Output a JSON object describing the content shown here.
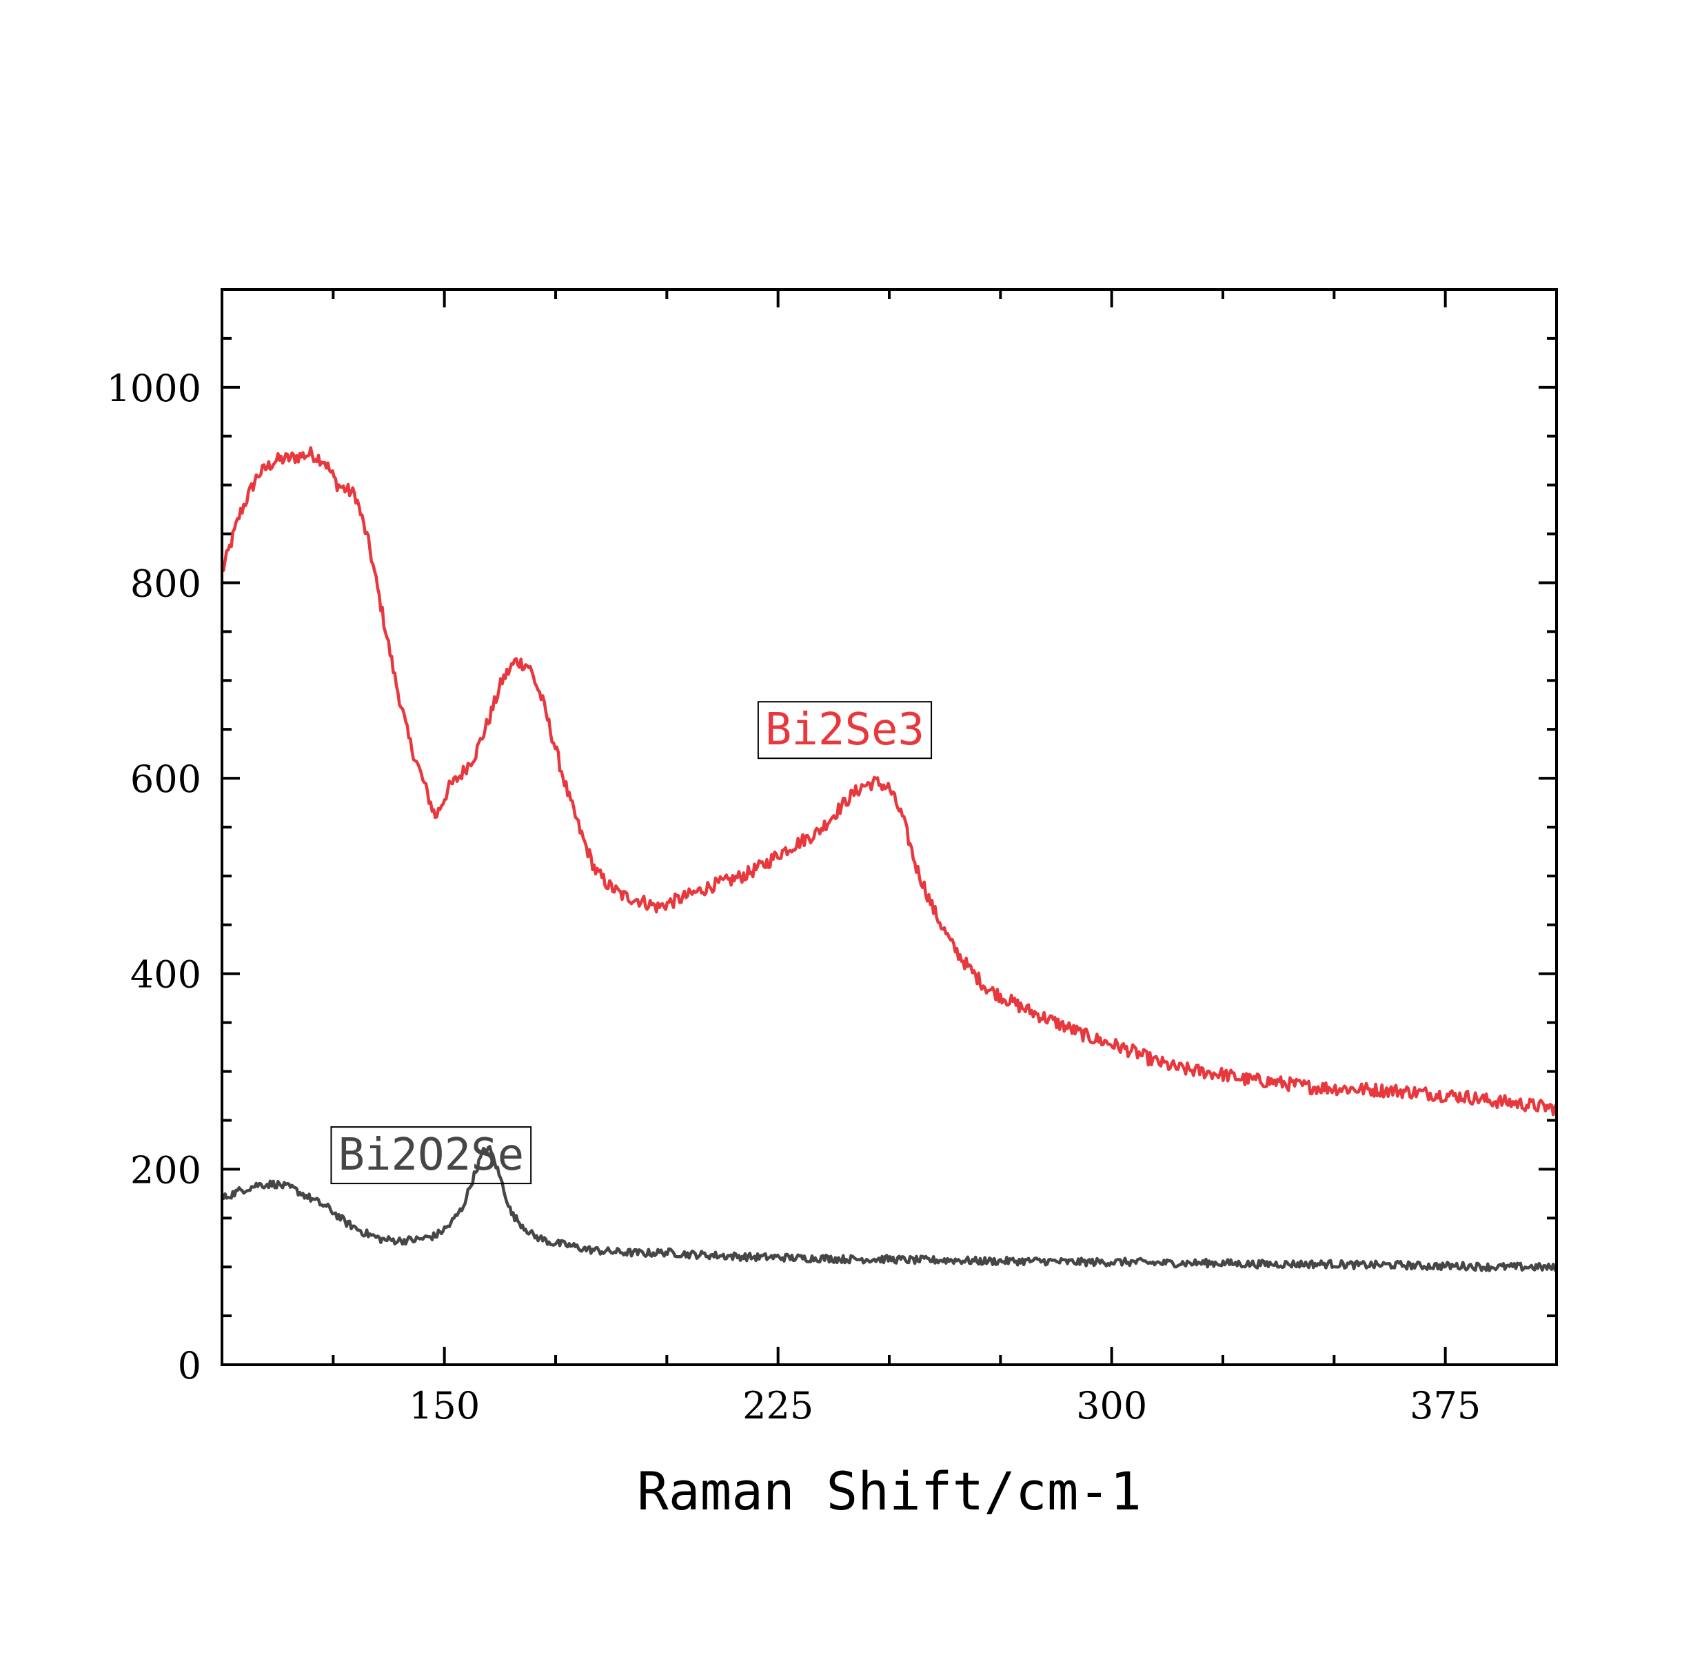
{
  "chart_data": {
    "type": "line",
    "xlabel": "Raman Shift/cm-1",
    "ylabel": "",
    "xlim": [
      100,
      400
    ],
    "ylim": [
      0,
      1100
    ],
    "x_ticks": [
      150,
      225,
      300,
      375
    ],
    "y_ticks": [
      0,
      200,
      400,
      600,
      800,
      1000
    ],
    "x_tick_labels": [
      "150",
      "225",
      "300",
      "375"
    ],
    "y_tick_labels": [
      "0",
      "200",
      "400",
      "600",
      "800",
      "1000"
    ],
    "grid": false,
    "legend": "none",
    "series": [
      {
        "name": "Bi2Se3",
        "color": "#e8383d",
        "label_position": [
          240,
          650
        ],
        "points": [
          [
            100,
            810
          ],
          [
            104,
            870
          ],
          [
            108,
            910
          ],
          [
            112,
            925
          ],
          [
            116,
            928
          ],
          [
            120,
            932
          ],
          [
            123,
            925
          ],
          [
            126,
            900
          ],
          [
            130,
            890
          ],
          [
            133,
            840
          ],
          [
            136,
            770
          ],
          [
            139,
            700
          ],
          [
            142,
            640
          ],
          [
            145,
            600
          ],
          [
            148,
            560
          ],
          [
            151,
            590
          ],
          [
            154,
            605
          ],
          [
            157,
            625
          ],
          [
            160,
            660
          ],
          [
            163,
            700
          ],
          [
            166,
            720
          ],
          [
            169,
            715
          ],
          [
            172,
            680
          ],
          [
            175,
            630
          ],
          [
            178,
            580
          ],
          [
            181,
            540
          ],
          [
            184,
            505
          ],
          [
            187,
            490
          ],
          [
            190,
            480
          ],
          [
            194,
            475
          ],
          [
            198,
            468
          ],
          [
            202,
            475
          ],
          [
            206,
            482
          ],
          [
            210,
            490
          ],
          [
            214,
            495
          ],
          [
            218,
            502
          ],
          [
            222,
            512
          ],
          [
            226,
            525
          ],
          [
            230,
            535
          ],
          [
            234,
            545
          ],
          [
            238,
            565
          ],
          [
            241,
            580
          ],
          [
            244,
            592
          ],
          [
            247,
            596
          ],
          [
            250,
            590
          ],
          [
            253,
            560
          ],
          [
            256,
            510
          ],
          [
            260,
            465
          ],
          [
            264,
            430
          ],
          [
            268,
            405
          ],
          [
            272,
            385
          ],
          [
            276,
            375
          ],
          [
            280,
            365
          ],
          [
            285,
            355
          ],
          [
            290,
            345
          ],
          [
            295,
            335
          ],
          [
            300,
            328
          ],
          [
            305,
            320
          ],
          [
            310,
            310
          ],
          [
            315,
            303
          ],
          [
            320,
            300
          ],
          [
            325,
            297
          ],
          [
            330,
            292
          ],
          [
            335,
            290
          ],
          [
            340,
            287
          ],
          [
            345,
            284
          ],
          [
            350,
            283
          ],
          [
            355,
            282
          ],
          [
            360,
            281
          ],
          [
            365,
            280
          ],
          [
            370,
            278
          ],
          [
            375,
            276
          ],
          [
            380,
            274
          ],
          [
            385,
            270
          ],
          [
            390,
            268
          ],
          [
            395,
            265
          ],
          [
            400,
            262
          ]
        ]
      },
      {
        "name": "Bi2O2Se",
        "color": "#464646",
        "label_position": [
          147,
          215
        ],
        "points": [
          [
            100,
            170
          ],
          [
            104,
            178
          ],
          [
            108,
            184
          ],
          [
            112,
            185
          ],
          [
            116,
            180
          ],
          [
            120,
            170
          ],
          [
            124,
            160
          ],
          [
            128,
            145
          ],
          [
            132,
            135
          ],
          [
            136,
            128
          ],
          [
            140,
            127
          ],
          [
            144,
            128
          ],
          [
            148,
            132
          ],
          [
            151,
            142
          ],
          [
            154,
            160
          ],
          [
            156,
            185
          ],
          [
            158,
            210
          ],
          [
            159,
            220
          ],
          [
            160,
            222
          ],
          [
            161,
            212
          ],
          [
            163,
            185
          ],
          [
            165,
            155
          ],
          [
            167,
            145
          ],
          [
            170,
            132
          ],
          [
            174,
            125
          ],
          [
            178,
            122
          ],
          [
            182,
            118
          ],
          [
            186,
            116
          ],
          [
            190,
            115
          ],
          [
            195,
            114
          ],
          [
            200,
            115
          ],
          [
            205,
            113
          ],
          [
            210,
            112
          ],
          [
            215,
            111
          ],
          [
            220,
            110
          ],
          [
            225,
            110
          ],
          [
            230,
            109
          ],
          [
            235,
            109
          ],
          [
            240,
            108
          ],
          [
            245,
            108
          ],
          [
            250,
            108
          ],
          [
            255,
            107
          ],
          [
            260,
            107
          ],
          [
            265,
            107
          ],
          [
            270,
            106
          ],
          [
            275,
            106
          ],
          [
            280,
            106
          ],
          [
            285,
            106
          ],
          [
            290,
            105
          ],
          [
            295,
            105
          ],
          [
            300,
            105
          ],
          [
            305,
            105
          ],
          [
            310,
            104
          ],
          [
            315,
            104
          ],
          [
            320,
            104
          ],
          [
            325,
            104
          ],
          [
            330,
            103
          ],
          [
            335,
            103
          ],
          [
            340,
            103
          ],
          [
            345,
            103
          ],
          [
            350,
            103
          ],
          [
            355,
            102
          ],
          [
            360,
            102
          ],
          [
            365,
            102
          ],
          [
            370,
            101
          ],
          [
            375,
            101
          ],
          [
            380,
            101
          ],
          [
            385,
            100
          ],
          [
            390,
            100
          ],
          [
            395,
            100
          ],
          [
            400,
            99
          ]
        ]
      }
    ]
  }
}
